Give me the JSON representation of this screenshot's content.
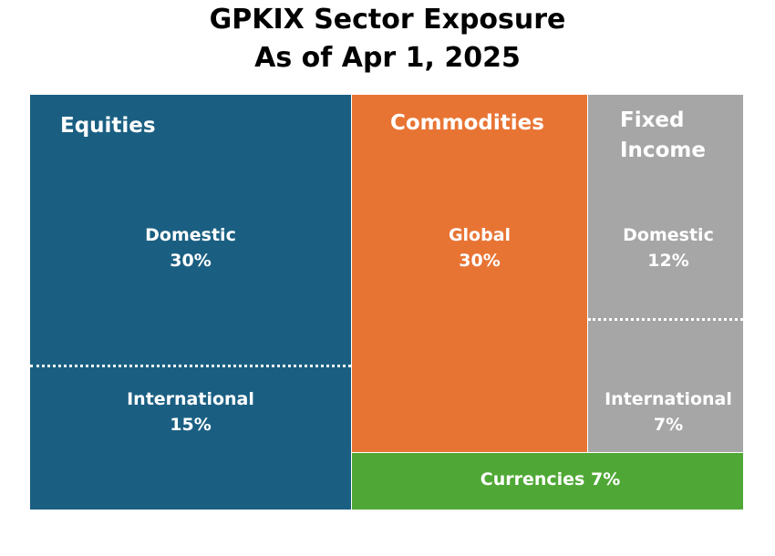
{
  "chart_data": {
    "type": "treemap",
    "title": "GPKIX Sector Exposure",
    "subtitle": "As of Apr 1, 2025",
    "colors": {
      "Equities": "#1a5f82",
      "Commodities": "#e87434",
      "Fixed Income": "#a6a6a6",
      "Currencies": "#4fa835"
    },
    "sectors": [
      {
        "name": "Equities",
        "cells": [
          {
            "label": "Domestic",
            "value": 30,
            "value_label": "30%"
          },
          {
            "label": "International",
            "value": 15,
            "value_label": "15%"
          }
        ]
      },
      {
        "name": "Commodities",
        "cells": [
          {
            "label": "Global",
            "value": 30,
            "value_label": "30%"
          }
        ]
      },
      {
        "name": "Fixed Income",
        "name_lines": [
          "Fixed",
          "Income"
        ],
        "cells": [
          {
            "label": "Domestic",
            "value": 12,
            "value_label": "12%"
          },
          {
            "label": "International",
            "value": 7,
            "value_label": "7%"
          }
        ]
      },
      {
        "name": "Currencies",
        "cells": [
          {
            "label": "Currencies",
            "value": 7,
            "value_label": "7%",
            "display": "Currencies 7%"
          }
        ]
      }
    ]
  }
}
